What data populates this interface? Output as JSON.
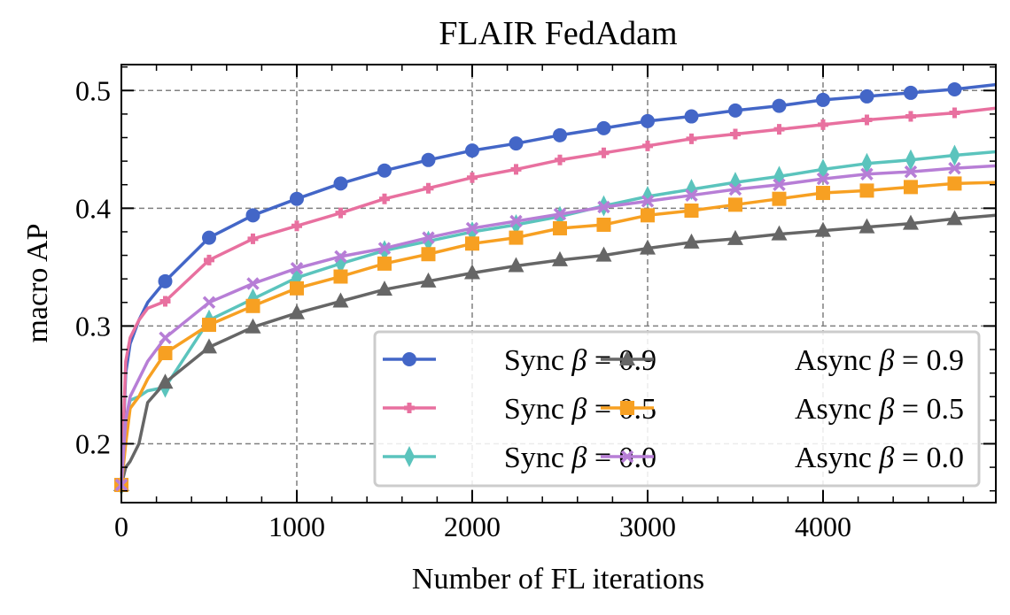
{
  "chart_data": {
    "type": "line",
    "title": "FLAIR FedAdam",
    "xlabel": "Number of FL iterations",
    "ylabel": "macro AP",
    "xlim": [
      0,
      4985
    ],
    "ylim": [
      0.15,
      0.522
    ],
    "xticks": [
      0,
      1000,
      2000,
      3000,
      4000
    ],
    "xtick_labels": [
      "0",
      "1000",
      "2000",
      "3000",
      "4000"
    ],
    "yticks": [
      0.2,
      0.3,
      0.4,
      0.5
    ],
    "ytick_labels": [
      "0.2",
      "0.3",
      "0.4",
      "0.5"
    ],
    "grid": true,
    "legend_position": "lower-right",
    "x": [
      0,
      25,
      50,
      100,
      150,
      250,
      500,
      750,
      1000,
      1250,
      1500,
      1750,
      2000,
      2250,
      2500,
      2750,
      3000,
      3250,
      3500,
      3750,
      4000,
      4250,
      4500,
      4750,
      4985
    ],
    "series": [
      {
        "name": "Sync β = 0.9",
        "legend_prefix": "Sync",
        "legend_value": "0.9",
        "color": "#4366c7",
        "marker": "circle",
        "values": [
          0.165,
          0.26,
          0.285,
          0.305,
          0.32,
          0.338,
          0.375,
          0.394,
          0.408,
          0.421,
          0.432,
          0.441,
          0.449,
          0.455,
          0.462,
          0.468,
          0.474,
          0.478,
          0.483,
          0.487,
          0.492,
          0.495,
          0.498,
          0.501,
          0.505
        ]
      },
      {
        "name": "Sync β = 0.5",
        "legend_prefix": "Sync",
        "legend_value": "0.5",
        "color": "#e8709f",
        "marker": "plus",
        "values": [
          0.165,
          0.27,
          0.29,
          0.305,
          0.315,
          0.321,
          0.356,
          0.374,
          0.385,
          0.396,
          0.408,
          0.417,
          0.426,
          0.433,
          0.441,
          0.447,
          0.453,
          0.459,
          0.463,
          0.467,
          0.471,
          0.475,
          0.478,
          0.481,
          0.485
        ]
      },
      {
        "name": "Sync β = 0.0",
        "legend_prefix": "Sync",
        "legend_value": "0.0",
        "color": "#5bc4bd",
        "marker": "diamond",
        "values": [
          0.165,
          0.22,
          0.237,
          0.24,
          0.245,
          0.248,
          0.305,
          0.323,
          0.341,
          0.353,
          0.364,
          0.372,
          0.38,
          0.386,
          0.393,
          0.402,
          0.41,
          0.416,
          0.422,
          0.427,
          0.433,
          0.438,
          0.441,
          0.445,
          0.448
        ]
      },
      {
        "name": "Async β = 0.9",
        "legend_prefix": "Async",
        "legend_value": "0.9",
        "color": "#666666",
        "marker": "triangle",
        "values": [
          0.165,
          0.18,
          0.185,
          0.2,
          0.235,
          0.252,
          0.282,
          0.299,
          0.311,
          0.321,
          0.331,
          0.338,
          0.345,
          0.351,
          0.356,
          0.36,
          0.366,
          0.371,
          0.374,
          0.378,
          0.381,
          0.384,
          0.387,
          0.391,
          0.394
        ]
      },
      {
        "name": "Async β = 0.5",
        "legend_prefix": "Async",
        "legend_value": "0.5",
        "color": "#f7a022",
        "marker": "square",
        "values": [
          0.165,
          0.2,
          0.23,
          0.24,
          0.255,
          0.277,
          0.301,
          0.317,
          0.332,
          0.342,
          0.353,
          0.361,
          0.37,
          0.375,
          0.383,
          0.386,
          0.394,
          0.398,
          0.403,
          0.408,
          0.413,
          0.415,
          0.418,
          0.421,
          0.422
        ]
      },
      {
        "name": "Async β = 0.0",
        "legend_prefix": "Async",
        "legend_value": "0.0",
        "color": "#b77ed6",
        "marker": "x",
        "values": [
          0.165,
          0.22,
          0.24,
          0.255,
          0.27,
          0.29,
          0.32,
          0.336,
          0.349,
          0.359,
          0.366,
          0.375,
          0.383,
          0.389,
          0.395,
          0.401,
          0.406,
          0.411,
          0.416,
          0.42,
          0.425,
          0.429,
          0.431,
          0.434,
          0.436
        ]
      }
    ],
    "legend_order": [
      0,
      3,
      1,
      4,
      2,
      5
    ],
    "marker_every": 250
  }
}
